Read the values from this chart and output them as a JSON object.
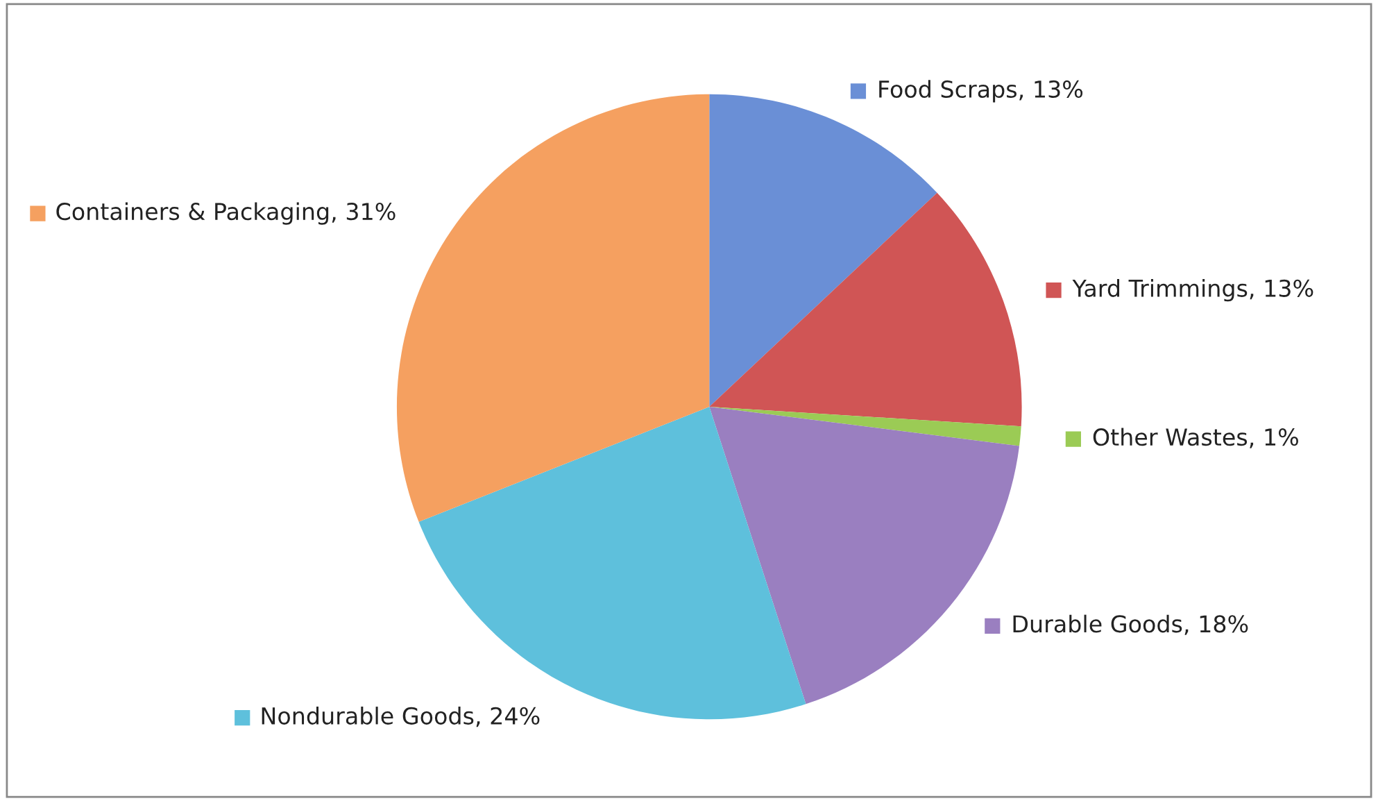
{
  "chart_data": {
    "type": "pie",
    "categories": [
      "Food Scraps",
      "Yard Trimmings",
      "Other Wastes",
      "Durable Goods",
      "Nondurable Goods",
      "Containers & Packaging"
    ],
    "values": [
      13,
      13,
      1,
      18,
      24,
      31
    ],
    "value_labels": [
      "13%",
      "13%",
      "1%",
      "18%",
      "24%",
      "31%"
    ],
    "legend": "top left",
    "colors": [
      "#6a8fd6",
      "#d05555",
      "#9bcb55",
      "#9a7fc0",
      "#5ec0dc",
      "#f5a060"
    ]
  }
}
